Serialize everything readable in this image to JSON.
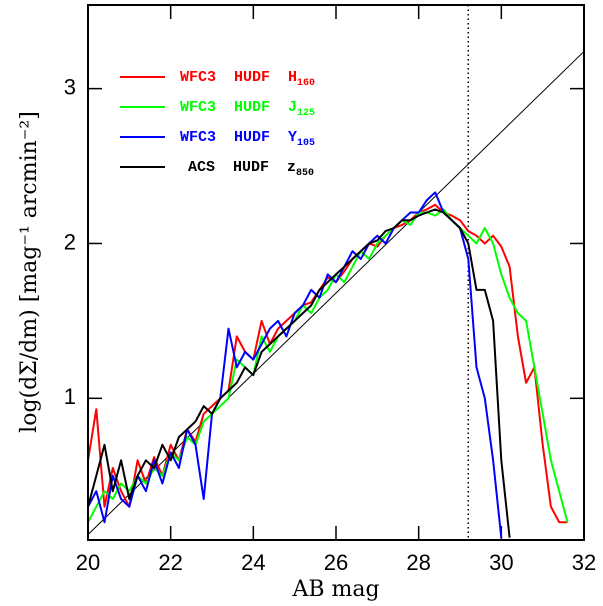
{
  "chart_data": {
    "type": "line",
    "xlabel": "AB mag",
    "ylabel": "log(dΣ/dm) [mag⁻¹ arcmin⁻²]",
    "xlim": [
      20,
      32
    ],
    "ylim": [
      0.085,
      3.54
    ],
    "xticks": [
      20,
      22,
      24,
      26,
      28,
      30,
      32
    ],
    "yticks": [
      1,
      2,
      3
    ],
    "vline_x": 29.2,
    "fit_line": {
      "x": [
        20,
        32
      ],
      "y": [
        0.12,
        3.24
      ]
    },
    "x": [
      20.0,
      20.2,
      20.4,
      20.6,
      20.8,
      21.0,
      21.2,
      21.4,
      21.6,
      21.8,
      22.0,
      22.2,
      22.4,
      22.6,
      22.8,
      23.0,
      23.2,
      23.4,
      23.6,
      23.8,
      24.0,
      24.2,
      24.4,
      24.6,
      24.8,
      25.0,
      25.2,
      25.4,
      25.6,
      25.8,
      26.0,
      26.2,
      26.4,
      26.6,
      26.8,
      27.0,
      27.2,
      27.4,
      27.6,
      27.8,
      28.0,
      28.2,
      28.4,
      28.6,
      28.8,
      29.0,
      29.2,
      29.4,
      29.6,
      29.8,
      30.0,
      30.2,
      30.4,
      30.6,
      30.8,
      31.0,
      31.2,
      31.4,
      31.6
    ],
    "series": [
      {
        "name": "WFC3  HUDF  H",
        "subscript": "160",
        "color": "#ff0000",
        "values": [
          0.6,
          0.93,
          0.3,
          0.55,
          0.4,
          0.3,
          0.6,
          0.45,
          0.62,
          0.5,
          0.7,
          0.6,
          0.8,
          0.72,
          0.9,
          0.95,
          1.0,
          1.05,
          1.4,
          1.3,
          1.25,
          1.5,
          1.35,
          1.45,
          1.5,
          1.55,
          1.6,
          1.62,
          1.7,
          1.78,
          1.75,
          1.82,
          1.9,
          1.95,
          2.0,
          1.98,
          2.05,
          2.1,
          2.12,
          2.15,
          2.2,
          2.22,
          2.25,
          2.2,
          2.18,
          2.15,
          2.08,
          2.05,
          2.0,
          2.05,
          1.98,
          1.85,
          1.4,
          1.1,
          1.2,
          0.7,
          0.3,
          0.2,
          0.2
        ]
      },
      {
        "name": "WFC3  HUDF  J",
        "subscript": "125",
        "color": "#00ff00",
        "values": [
          0.2,
          0.3,
          0.4,
          0.35,
          0.45,
          0.4,
          0.5,
          0.45,
          0.55,
          0.5,
          0.65,
          0.6,
          0.75,
          0.7,
          0.85,
          0.9,
          0.95,
          1.0,
          1.25,
          1.2,
          1.15,
          1.4,
          1.3,
          1.4,
          1.45,
          1.5,
          1.6,
          1.55,
          1.65,
          1.7,
          1.8,
          1.75,
          1.85,
          1.95,
          1.9,
          2.0,
          2.05,
          2.1,
          2.15,
          2.12,
          2.2,
          2.2,
          2.18,
          2.22,
          2.15,
          2.1,
          2.05,
          2.0,
          2.1,
          2.0,
          1.8,
          1.65,
          1.55,
          1.5,
          1.2,
          0.9,
          0.6,
          0.4,
          0.2
        ]
      },
      {
        "name": "WFC3  HUDF  Y",
        "subscript": "105",
        "color": "#0000ff",
        "values": [
          0.3,
          0.4,
          0.2,
          0.5,
          0.35,
          0.3,
          0.5,
          0.4,
          0.6,
          0.45,
          0.65,
          0.55,
          0.8,
          0.7,
          0.35,
          0.9,
          1.0,
          1.45,
          1.2,
          1.3,
          1.25,
          1.35,
          1.45,
          1.5,
          1.4,
          1.55,
          1.6,
          1.7,
          1.65,
          1.8,
          1.75,
          1.85,
          1.95,
          1.9,
          2.0,
          2.05,
          2.0,
          2.1,
          2.15,
          2.2,
          2.2,
          2.28,
          2.33,
          2.2,
          2.15,
          2.1,
          1.9,
          1.2,
          1.0,
          0.6,
          0.1,
          null,
          null,
          null,
          null,
          null,
          null,
          null,
          null
        ]
      },
      {
        "name": "ACS  HUDF  z",
        "subscript": "850",
        "color": "#000000",
        "values": [
          0.3,
          0.5,
          0.7,
          0.4,
          0.6,
          0.35,
          0.5,
          0.6,
          0.55,
          0.7,
          0.6,
          0.75,
          0.8,
          0.85,
          0.95,
          0.9,
          1.0,
          1.05,
          1.1,
          1.2,
          1.15,
          1.3,
          1.35,
          1.4,
          1.45,
          1.5,
          1.55,
          1.6,
          1.7,
          1.75,
          1.8,
          1.85,
          1.9,
          1.95,
          2.0,
          2.02,
          2.08,
          2.1,
          2.15,
          2.15,
          2.18,
          2.2,
          2.22,
          2.2,
          2.15,
          2.1,
          2.0,
          1.7,
          1.7,
          1.5,
          0.6,
          0.1,
          null,
          null,
          null,
          null,
          null,
          null,
          null
        ]
      }
    ]
  }
}
